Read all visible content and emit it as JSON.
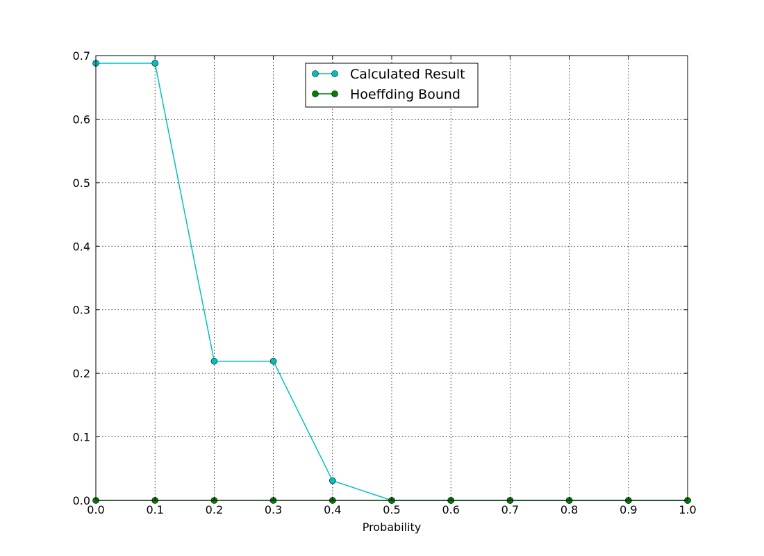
{
  "chart_data": {
    "type": "line",
    "title": "",
    "xlabel": "Probability",
    "ylabel": "",
    "xlim": [
      0.0,
      1.0
    ],
    "ylim": [
      0.0,
      0.7
    ],
    "xticks": [
      "0.0",
      "0.1",
      "0.2",
      "0.3",
      "0.4",
      "0.5",
      "0.6",
      "0.7",
      "0.8",
      "0.9",
      "1.0"
    ],
    "yticks": [
      "0.0",
      "0.1",
      "0.2",
      "0.3",
      "0.4",
      "0.5",
      "0.6",
      "0.7"
    ],
    "grid": true,
    "legend_position": "top-center",
    "x": [
      0.0,
      0.1,
      0.2,
      0.3,
      0.4,
      0.5,
      0.6,
      0.7,
      0.8,
      0.9,
      1.0
    ],
    "series": [
      {
        "name": "Calculated Result",
        "color": "#00bfbf",
        "values": [
          0.688,
          0.688,
          0.219,
          0.219,
          0.031,
          0.0,
          0.0,
          0.0,
          0.0,
          0.0,
          0.0
        ]
      },
      {
        "name": "Hoeffding Bound",
        "color": "#008000",
        "values": [
          0.0,
          0.0,
          0.0,
          0.0,
          0.0,
          0.0,
          0.0,
          0.0,
          0.0,
          0.0,
          0.0
        ]
      }
    ]
  }
}
